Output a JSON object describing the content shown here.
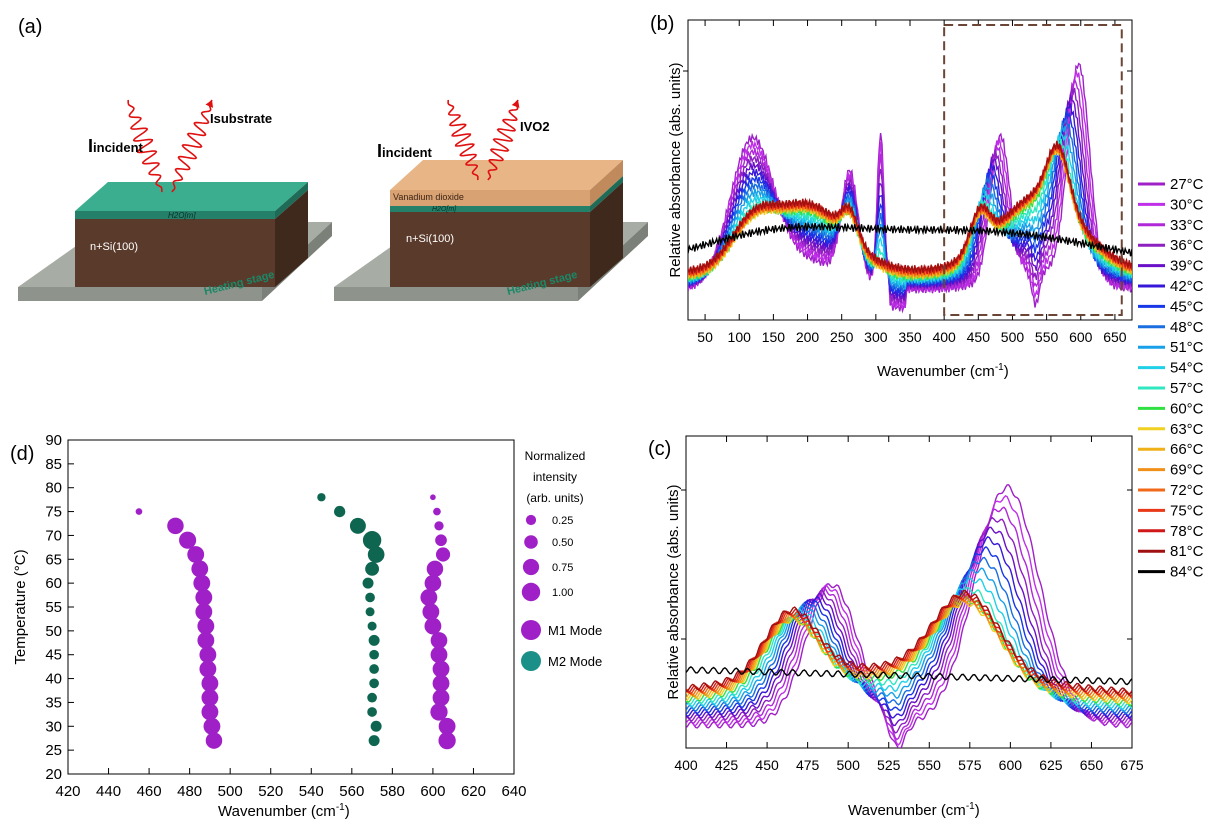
{
  "panel_labels": {
    "a": "(a)",
    "b": "(b)",
    "c": "(c)",
    "d": "(d)"
  },
  "schematic": {
    "left": {
      "incident": "I",
      "incident_sub": "incident",
      "reflected": "Isubstrate",
      "layer_label": "H2O[m]",
      "substrate_label": "n+Si(100)",
      "stage_label": "Heating stage"
    },
    "right": {
      "incident": "I",
      "incident_sub": "incident",
      "reflected": "IVO2",
      "film_label": "Vanadium dioxide",
      "layer_label": "H2O[m]",
      "substrate_label": "n+Si(100)",
      "stage_label": "Heating stage"
    }
  },
  "chart_data": [
    {
      "panel": "(b)",
      "type": "line",
      "xlabel": "Wavenumber (cm",
      "xlabel_sup": "-1",
      "xlabel_end": ")",
      "ylabel": "Relative absorbance (abs. units)",
      "xlim": [
        25,
        675
      ],
      "xticks": [
        50,
        100,
        150,
        200,
        250,
        300,
        350,
        400,
        450,
        500,
        550,
        600,
        650
      ],
      "grid": false,
      "highlight_region": [
        400,
        660
      ],
      "legend_position": "right"
    },
    {
      "panel": "(c)",
      "type": "line",
      "xlabel": "Wavenumber (cm",
      "xlabel_sup": "-1",
      "xlabel_end": ")",
      "ylabel": "Relative absorbance (abs. units)",
      "xlim": [
        400,
        675
      ],
      "xticks": [
        400,
        425,
        450,
        475,
        500,
        525,
        550,
        575,
        600,
        625,
        650,
        675
      ],
      "grid": false
    },
    {
      "panel": "(d)",
      "type": "scatter",
      "xlabel": "Wavenumber (cm",
      "xlabel_sup": "-1",
      "xlabel_end": ")",
      "ylabel": "Temperature (°C)",
      "xlim": [
        420,
        640
      ],
      "ylim": [
        20,
        90
      ],
      "xticks": [
        420,
        440,
        460,
        480,
        500,
        520,
        540,
        560,
        580,
        600,
        620,
        640
      ],
      "yticks": [
        20,
        25,
        30,
        35,
        40,
        45,
        50,
        55,
        60,
        65,
        70,
        75,
        80,
        85,
        90
      ],
      "size_legend_title": [
        "Normalized",
        "intensity",
        "(arb. units)"
      ],
      "size_legend": [
        {
          "label": "0.25",
          "value": 0.25
        },
        {
          "label": "0.50",
          "value": 0.5
        },
        {
          "label": "0.75",
          "value": 0.75
        },
        {
          "label": "1.00",
          "value": 1.0
        }
      ],
      "series": [
        {
          "name": "M1 Mode",
          "color": "#a020c8",
          "points": [
            [
              492,
              27,
              0.78
            ],
            [
              491,
              30,
              0.82
            ],
            [
              490,
              33,
              0.82
            ],
            [
              490,
              36,
              0.82
            ],
            [
              490,
              39,
              0.82
            ],
            [
              489,
              42,
              0.82
            ],
            [
              489,
              45,
              0.82
            ],
            [
              488,
              48,
              0.82
            ],
            [
              488,
              51,
              0.82
            ],
            [
              487,
              54,
              0.82
            ],
            [
              487,
              57,
              0.82
            ],
            [
              486,
              60,
              0.82
            ],
            [
              485,
              63,
              0.82
            ],
            [
              483,
              66,
              0.82
            ],
            [
              479,
              69,
              0.85
            ],
            [
              473,
              72,
              0.78
            ],
            [
              455,
              75,
              0.08
            ],
            [
              607,
              27,
              0.87
            ],
            [
              607,
              30,
              0.82
            ],
            [
              603,
              33,
              0.87
            ],
            [
              604,
              36,
              0.82
            ],
            [
              604,
              39,
              0.82
            ],
            [
              604,
              42,
              0.82
            ],
            [
              603,
              45,
              0.82
            ],
            [
              603,
              48,
              0.8
            ],
            [
              600,
              51,
              0.82
            ],
            [
              599,
              54,
              0.82
            ],
            [
              598,
              57,
              0.82
            ],
            [
              600,
              60,
              0.8
            ],
            [
              601,
              63,
              0.78
            ],
            [
              605,
              66,
              0.55
            ],
            [
              604,
              69,
              0.35
            ],
            [
              603,
              72,
              0.2
            ],
            [
              602,
              75,
              0.12
            ],
            [
              600,
              78,
              0.05
            ]
          ]
        },
        {
          "name": "M2 Mode",
          "color": "#0e6650",
          "points": [
            [
              571,
              27,
              0.3
            ],
            [
              572,
              30,
              0.3
            ],
            [
              570,
              33,
              0.22
            ],
            [
              570,
              36,
              0.22
            ],
            [
              571,
              39,
              0.22
            ],
            [
              571,
              42,
              0.22
            ],
            [
              571,
              45,
              0.22
            ],
            [
              571,
              48,
              0.3
            ],
            [
              570,
              51,
              0.18
            ],
            [
              569,
              54,
              0.18
            ],
            [
              569,
              57,
              0.22
            ],
            [
              568,
              60,
              0.3
            ],
            [
              570,
              63,
              0.52
            ],
            [
              572,
              66,
              0.8
            ],
            [
              570,
              69,
              1.0
            ],
            [
              563,
              72,
              0.72
            ],
            [
              554,
              75,
              0.32
            ],
            [
              545,
              78,
              0.15
            ]
          ]
        }
      ],
      "mode_legend": [
        {
          "label": "M1 Mode",
          "color": "#a020c8"
        },
        {
          "label": "M2 Mode",
          "color": "#1a9088"
        }
      ]
    }
  ],
  "temperature_legend": [
    {
      "label": "27°C",
      "color": "#a020c8"
    },
    {
      "label": "30°C",
      "color": "#c030e8"
    },
    {
      "label": "33°C",
      "color": "#b028d8"
    },
    {
      "label": "36°C",
      "color": "#8e20c0"
    },
    {
      "label": "39°C",
      "color": "#6a10c8"
    },
    {
      "label": "42°C",
      "color": "#3818d8"
    },
    {
      "label": "45°C",
      "color": "#1838e8"
    },
    {
      "label": "48°C",
      "color": "#1a6ee0"
    },
    {
      "label": "51°C",
      "color": "#18a0e8"
    },
    {
      "label": "54°C",
      "color": "#20d0e8"
    },
    {
      "label": "57°C",
      "color": "#30e8c0"
    },
    {
      "label": "60°C",
      "color": "#30e040"
    },
    {
      "label": "63°C",
      "color": "#f0d020"
    },
    {
      "label": "66°C",
      "color": "#f0b018"
    },
    {
      "label": "69°C",
      "color": "#f09018"
    },
    {
      "label": "72°C",
      "color": "#f06818"
    },
    {
      "label": "75°C",
      "color": "#e83818"
    },
    {
      "label": "78°C",
      "color": "#d01818"
    },
    {
      "label": "81°C",
      "color": "#a01010"
    },
    {
      "label": "84°C",
      "color": "#000000"
    }
  ]
}
